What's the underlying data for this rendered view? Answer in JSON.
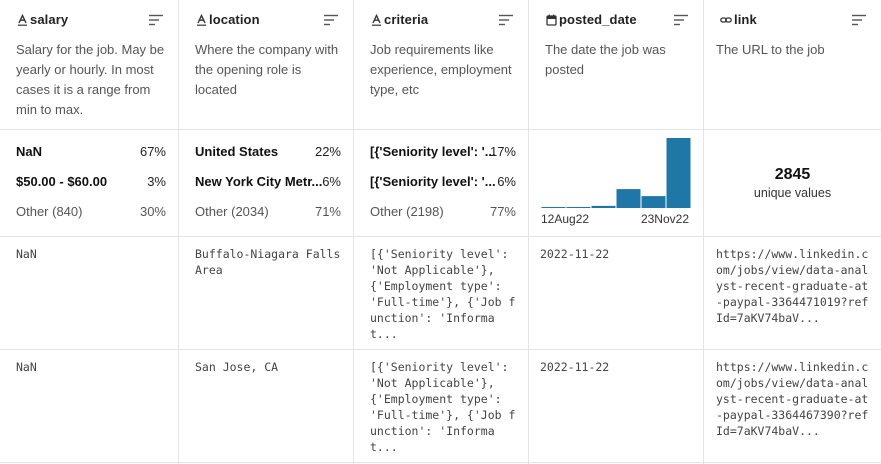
{
  "columns": [
    {
      "name": "salary",
      "type_icon": "text-type-icon",
      "description": "Salary for the job. May be yearly or hourly. In most cases it is a range from min to max.",
      "stats": [
        {
          "label": "NaN",
          "pct": "67%"
        },
        {
          "label": "$50.00 - $60.00",
          "pct": "3%"
        }
      ],
      "other": {
        "label": "Other (840)",
        "pct": "30%"
      },
      "rows": [
        "NaN",
        "NaN"
      ]
    },
    {
      "name": "location",
      "type_icon": "text-type-icon",
      "description": "Where the company with the opening role is located",
      "stats": [
        {
          "label": "United States",
          "pct": "22%"
        },
        {
          "label": "New York City Metr...",
          "pct": "6%"
        }
      ],
      "other": {
        "label": "Other (2034)",
        "pct": "71%"
      },
      "rows": [
        "Buffalo-Niagara Falls Area",
        "San Jose, CA"
      ]
    },
    {
      "name": "criteria",
      "type_icon": "text-type-icon",
      "description": "Job requirements like experience, employment type, etc",
      "stats": [
        {
          "label": "[{'Seniority level': '...",
          "pct": "17%"
        },
        {
          "label": "[{'Seniority level': '...",
          "pct": "6%"
        }
      ],
      "other": {
        "label": "Other (2198)",
        "pct": "77%"
      },
      "rows": [
        "[{'Seniority level': 'Not Applicable'}, {'Employment type': 'Full-time'}, {'Job function': 'Informat...",
        "[{'Seniority level': 'Not Applicable'}, {'Employment type': 'Full-time'}, {'Job function': 'Informat..."
      ]
    },
    {
      "name": "posted_date",
      "type_icon": "calendar-type-icon",
      "description": "The date the job was posted",
      "histogram": {
        "start_label": "12Aug22",
        "end_label": "23Nov22",
        "bar_heights_relative": [
          0.01,
          0.01,
          0.03,
          0.27,
          0.17,
          1.0
        ],
        "color": "#1f77a8"
      },
      "rows": [
        "2022-11-22",
        "2022-11-22"
      ]
    },
    {
      "name": "link",
      "type_icon": "link-type-icon",
      "description": "The URL to the job",
      "unique": {
        "count": "2845",
        "label": "unique values"
      },
      "rows": [
        "https://www.linkedin.com/jobs/view/data-analyst-recent-graduate-at-paypal-3364471019?refId=7aKV74baV...",
        "https://www.linkedin.com/jobs/view/data-analyst-recent-graduate-at-paypal-3364467390?refId=7aKV74baV..."
      ]
    }
  ]
}
